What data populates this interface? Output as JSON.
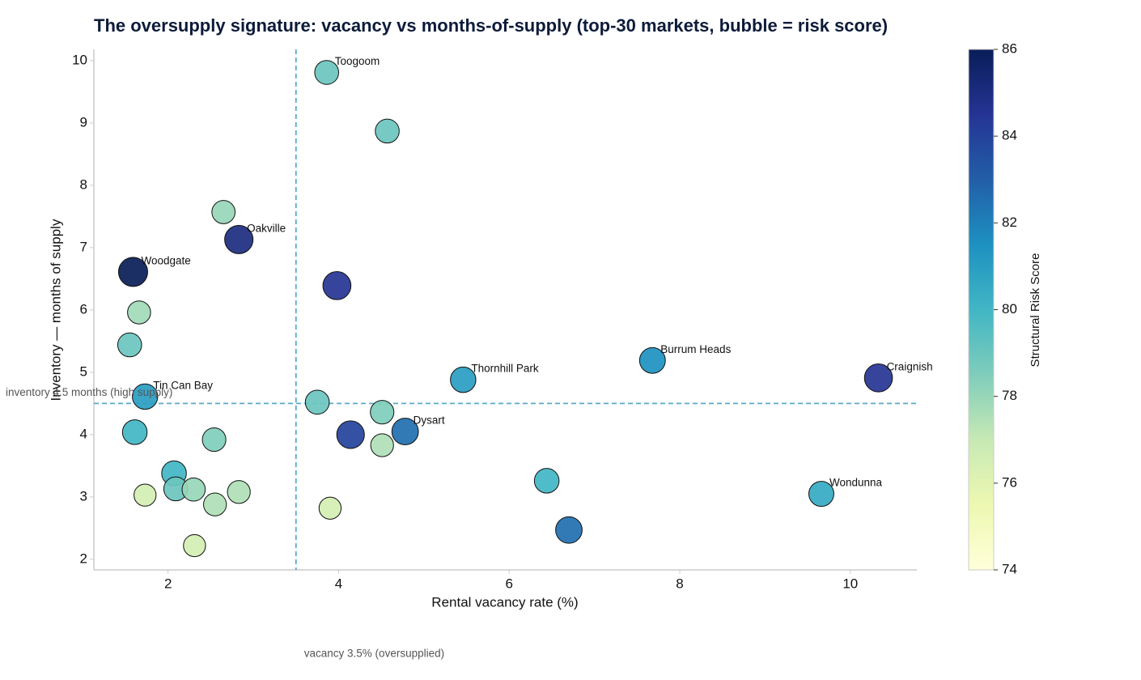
{
  "chart_data": {
    "type": "bubble",
    "title": "The oversupply signature: vacancy vs months-of-supply (top-30 markets, bubble = risk score)",
    "x_label": "Rental vacancy rate (%)",
    "y_label": "Inventory — months of supply",
    "x": [
      3.86,
      4.57,
      2.65,
      2.83,
      1.59,
      3.98,
      1.66,
      1.55,
      7.68,
      10.33,
      5.46,
      1.73,
      3.75,
      4.51,
      4.78,
      4.14,
      1.61,
      2.54,
      4.51,
      2.07,
      6.44,
      2.09,
      2.3,
      2.83,
      9.66,
      1.73,
      2.55,
      3.9,
      6.7,
      2.31
    ],
    "y": [
      9.81,
      8.87,
      7.57,
      7.13,
      6.61,
      6.39,
      5.96,
      5.44,
      5.19,
      4.91,
      4.88,
      4.61,
      4.52,
      4.36,
      4.05,
      4.0,
      4.04,
      3.92,
      3.83,
      3.38,
      3.26,
      3.13,
      3.12,
      3.08,
      3.05,
      3.03,
      2.88,
      2.82,
      2.47,
      2.22
    ],
    "sizes": [
      79,
      79,
      78,
      85,
      86,
      84.5,
      77.8,
      79,
      81.5,
      84.5,
      81,
      81,
      79,
      78.5,
      82.5,
      84,
      80,
      78.5,
      77.5,
      80,
      80,
      79,
      78,
      77.5,
      80.5,
      76.5,
      77.5,
      76.5,
      82.5,
      76.5
    ],
    "labels": [
      "Toogoom",
      null,
      null,
      "Oakville",
      "Woodgate",
      null,
      null,
      null,
      "Burrum Heads",
      "Craignish",
      "Thornhill Park",
      "Tin Can Bay",
      null,
      null,
      "Dysart",
      null,
      null,
      null,
      null,
      null,
      null,
      null,
      null,
      null,
      "Wondunna",
      null,
      null,
      null,
      null,
      null
    ],
    "xlim": [
      1.13,
      10.78
    ],
    "ylim": [
      1.83,
      10.18
    ],
    "xticks": [
      2,
      4,
      6,
      8,
      10
    ],
    "yticks": [
      2,
      3,
      4,
      5,
      6,
      7,
      8,
      9,
      10
    ],
    "vline": {
      "value": 3.5,
      "label": "vacancy 3.5% (oversupplied)",
      "color": "#5aa9c9"
    },
    "hline": {
      "value": 4.5,
      "label": "inventory 4.5 months (high supply)",
      "color": "#5aa9c9"
    },
    "colorbar": {
      "label": "Structural Risk Score",
      "lim": [
        74,
        86
      ],
      "ticks": [
        74,
        76,
        78,
        80,
        82,
        84,
        86
      ],
      "colormap": [
        "#ffffd9",
        "#edf8b1",
        "#c7e9b4",
        "#7fcdbb",
        "#41b6c4",
        "#1d91c0",
        "#225ea8",
        "#253494",
        "#081d58"
      ]
    }
  }
}
